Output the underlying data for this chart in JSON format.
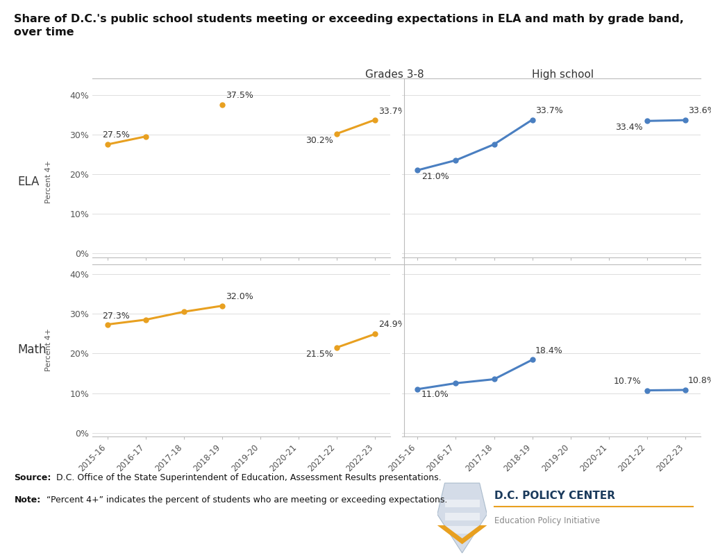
{
  "title": "Share of D.C.'s public school students meeting or exceeding expectations in ELA and math by grade band,\nover time",
  "col_labels": [
    "Grades 3-8",
    "High school"
  ],
  "row_labels": [
    "ELA",
    "Math"
  ],
  "ylabel": "Percent 4+",
  "years": [
    "2015-16",
    "2016-17",
    "2017-18",
    "2018-19",
    "2019-20",
    "2020-21",
    "2021-22",
    "2022-23"
  ],
  "ela_grades38_values": [
    27.5,
    29.5,
    null,
    37.5,
    null,
    null,
    30.2,
    33.7
  ],
  "ela_hs_values": [
    21.0,
    23.5,
    27.5,
    33.7,
    null,
    null,
    33.4,
    33.6
  ],
  "math_grades38_values": [
    27.3,
    28.5,
    30.5,
    32.0,
    null,
    null,
    21.5,
    24.9
  ],
  "math_hs_values": [
    11.0,
    12.5,
    13.5,
    18.4,
    null,
    null,
    10.7,
    10.8
  ],
  "ela_grades38_annotate": {
    "0": "27.5%",
    "3": "37.5%",
    "6": "30.2%",
    "7": "33.7%"
  },
  "ela_hs_annotate": {
    "0": "21.0%",
    "3": "33.7%",
    "6": "33.4%",
    "7": "33.6%"
  },
  "math_grades38_annotate": {
    "0": "27.3%",
    "3": "32.0%",
    "6": "21.5%",
    "7": "24.9%"
  },
  "math_hs_annotate": {
    "0": "11.0%",
    "3": "18.4%",
    "6": "10.7%",
    "7": "10.8%"
  },
  "gold_color": "#E8A020",
  "blue_color": "#4a7fc1",
  "yticks": [
    0,
    10,
    20,
    30,
    40
  ],
  "ylim": [
    -1,
    42
  ],
  "source_bold": "Source:",
  "source_rest": " D.C. Office of the State Superintendent of Education, Assessment Results presentations.",
  "note_bold": "Note:",
  "note_rest": " “Percent 4+” indicates the percent of students who are meeting or exceeding expectations.",
  "dc_policy_text": "D.C. POLICY CENTER",
  "edu_policy_text": "Education Policy Initiative",
  "bg_color": "#FFFFFF",
  "spine_color": "#BBBBBB",
  "grid_color": "#DDDDDD",
  "text_color": "#333333",
  "tick_color": "#555555"
}
